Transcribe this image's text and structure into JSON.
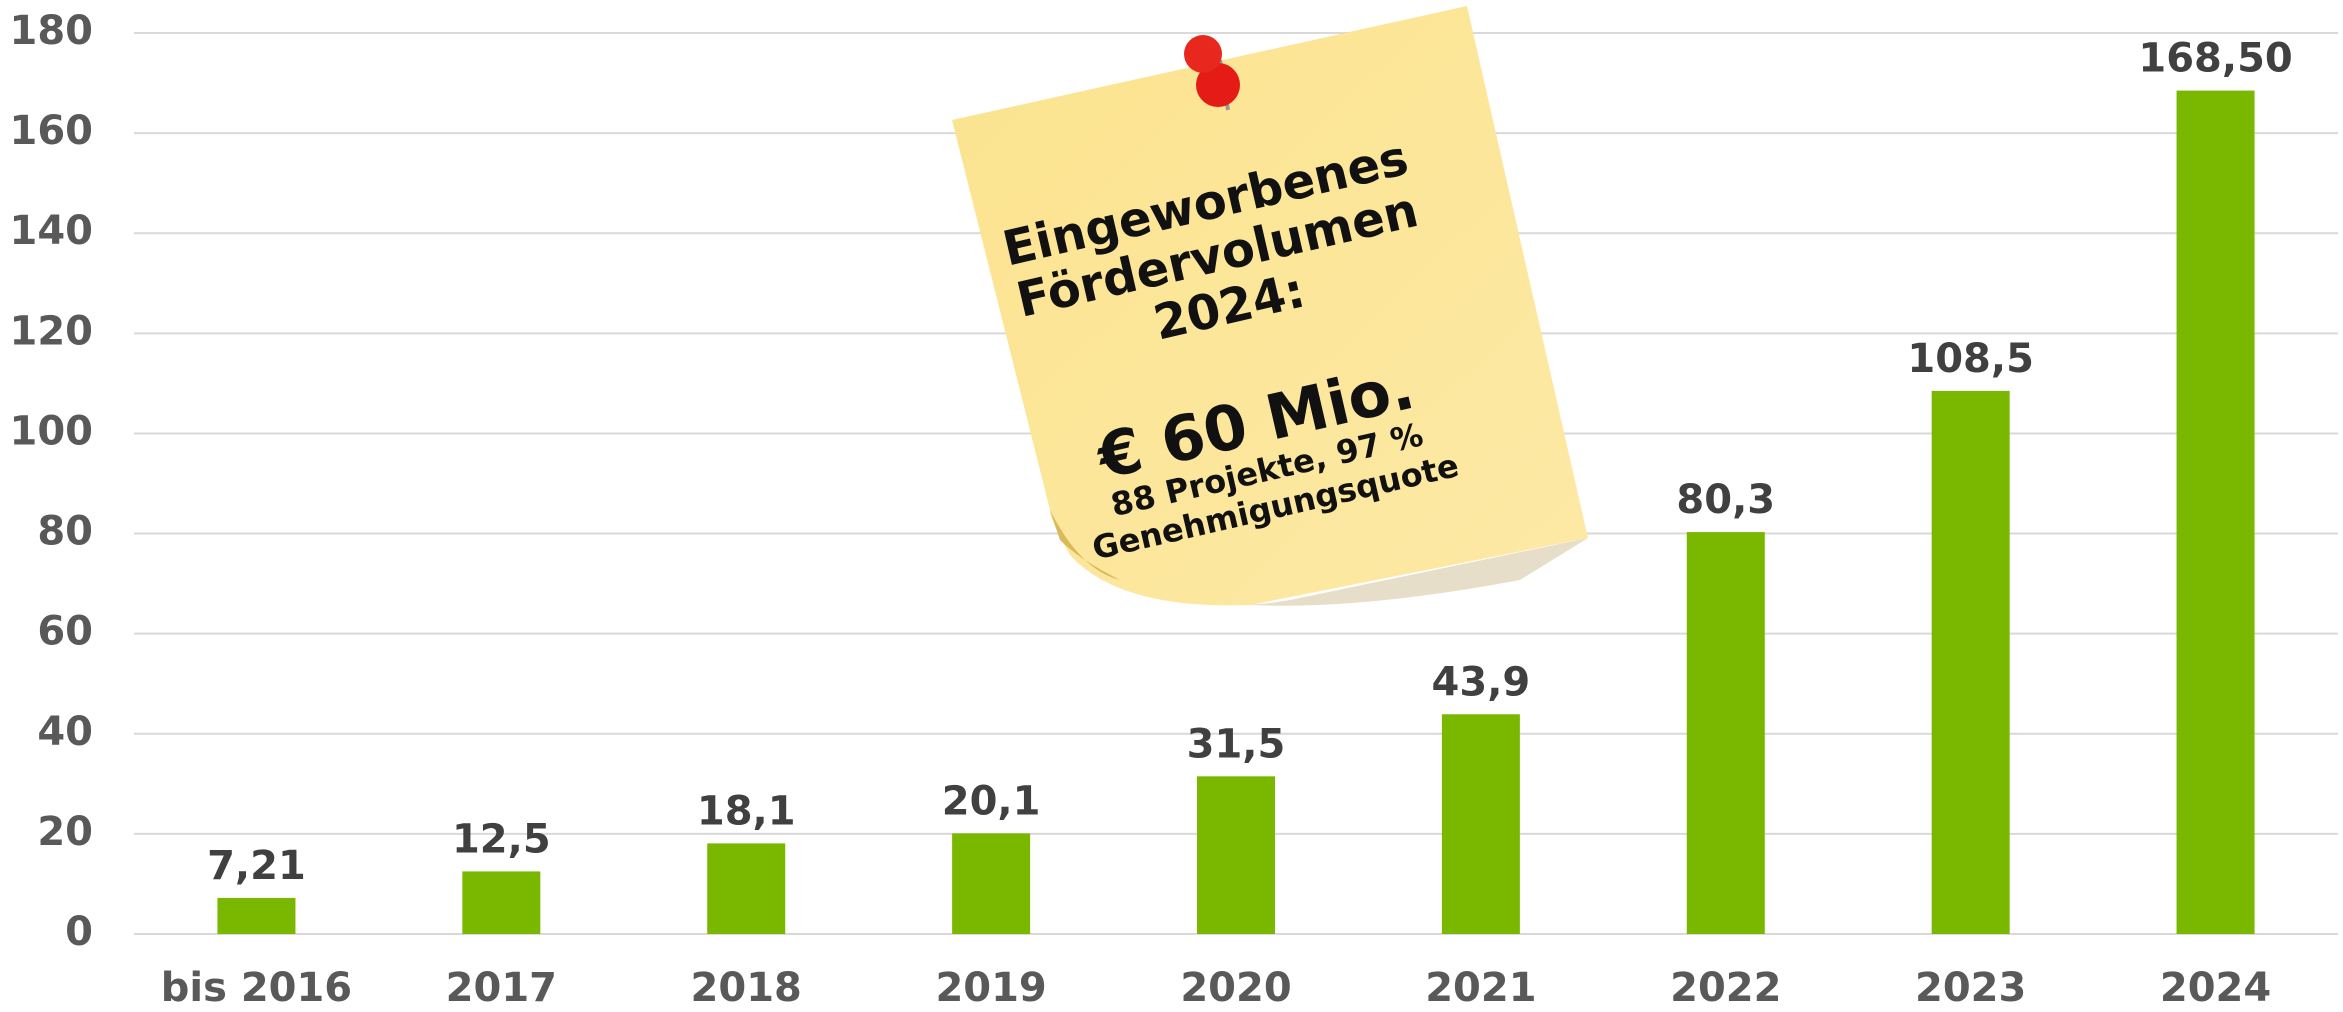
{
  "chart_data": {
    "type": "bar",
    "categories": [
      "bis 2016",
      "2017",
      "2018",
      "2019",
      "2020",
      "2021",
      "2022",
      "2023",
      "2024"
    ],
    "values": [
      7.21,
      12.5,
      18.1,
      20.1,
      31.5,
      43.9,
      80.3,
      108.5,
      168.5
    ],
    "value_labels": [
      "7,21",
      "12,5",
      "18,1",
      "20,1",
      "31,5",
      "43,9",
      "80,3",
      "108,5",
      "168,50"
    ],
    "color": "#7ab800",
    "ylim": [
      0,
      180
    ],
    "yticks": [
      0,
      20,
      40,
      60,
      80,
      100,
      120,
      140,
      160,
      180
    ],
    "grid": true,
    "note_title": [
      "Eingeworbenes",
      "Fördervolumen",
      "2024:"
    ],
    "note_amount": "€ 60 Mio.",
    "note_details": [
      "88 Projekte, 97 %",
      "Genehmigungsquote"
    ]
  }
}
